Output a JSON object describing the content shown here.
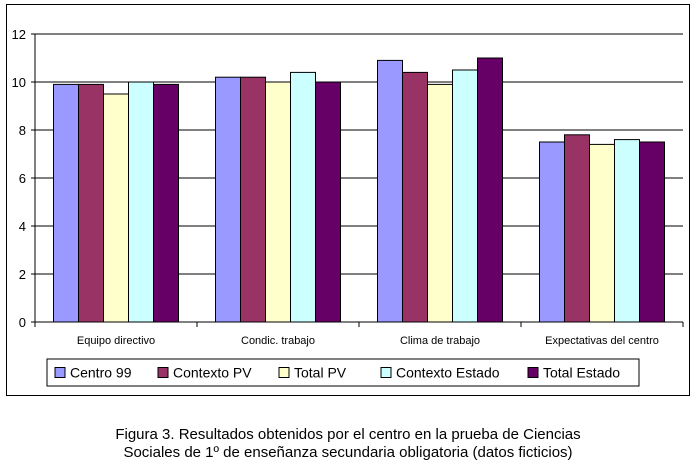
{
  "chart_data": {
    "type": "bar",
    "title": "",
    "xlabel": "",
    "ylabel": "",
    "ylim": [
      0,
      12
    ],
    "yticks": [
      0,
      2,
      4,
      6,
      8,
      10,
      12
    ],
    "grid": true,
    "legend_position": "bottom",
    "categories": [
      "Equipo directivo",
      "Condic. trabajo",
      "Clima de trabajo",
      "Expectativas del centro"
    ],
    "series": [
      {
        "name": "Centro 99",
        "color": "#9999ff",
        "values": [
          9.9,
          10.2,
          10.9,
          7.5
        ]
      },
      {
        "name": "Contexto PV",
        "color": "#993366",
        "values": [
          9.9,
          10.2,
          10.4,
          7.8
        ]
      },
      {
        "name": "Total PV",
        "color": "#ffffcc",
        "values": [
          9.5,
          10.0,
          9.9,
          7.4
        ]
      },
      {
        "name": "Contexto Estado",
        "color": "#ccffff",
        "values": [
          10.0,
          10.4,
          10.5,
          7.6
        ]
      },
      {
        "name": "Total Estado",
        "color": "#660066",
        "values": [
          9.9,
          10.0,
          11.0,
          7.5
        ]
      }
    ]
  },
  "caption": {
    "line1": "Figura 3. Resultados obtenidos por el centro en la prueba de Ciencias",
    "line2": "Sociales de 1º de enseñanza secundaria obligatoria (datos ficticios)"
  }
}
